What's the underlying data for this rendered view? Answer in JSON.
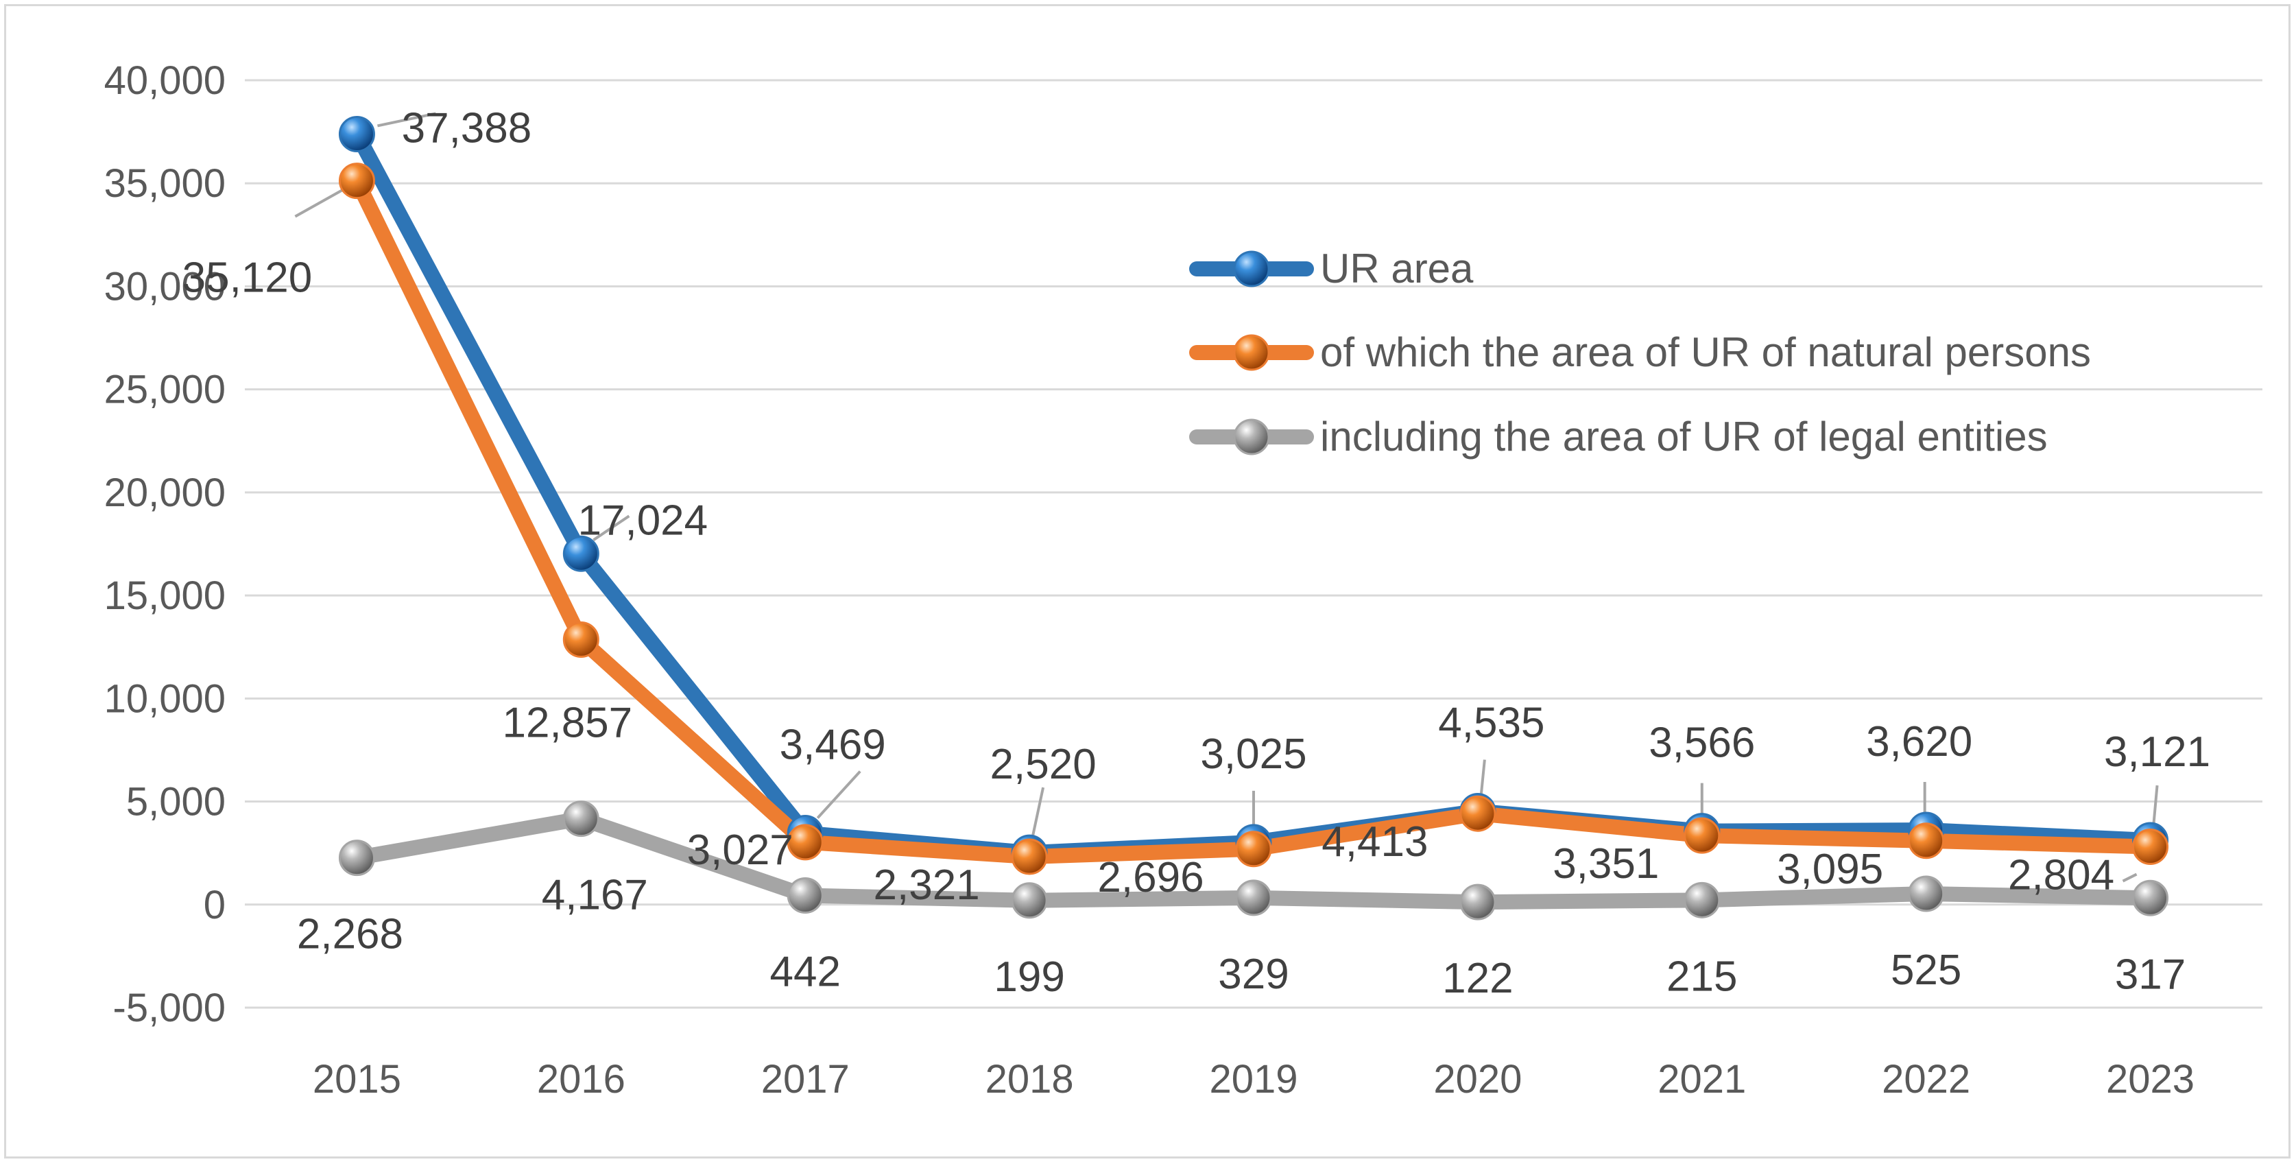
{
  "chart_data": {
    "type": "line",
    "title": "",
    "xlabel": "",
    "ylabel": "",
    "categories": [
      "2015",
      "2016",
      "2017",
      "2018",
      "2019",
      "2020",
      "2021",
      "2022",
      "2023"
    ],
    "ylim": [
      -5000,
      40000
    ],
    "yticks": [
      -5000,
      0,
      5000,
      10000,
      15000,
      20000,
      25000,
      30000,
      35000,
      40000
    ],
    "ytick_labels": [
      "-5,000",
      "0",
      "5,000",
      "10,000",
      "15,000",
      "20,000",
      "25,000",
      "30,000",
      "35,000",
      "40,000"
    ],
    "grid": true,
    "legend_position": "right",
    "series": [
      {
        "name": "UR area",
        "color": "#2e75b6",
        "values": [
          37388,
          17024,
          3469,
          2520,
          3025,
          4535,
          3566,
          3620,
          3121
        ],
        "labels": [
          "37,388",
          "17,024",
          "3,469",
          "2,520",
          "3,025",
          "4,535",
          "3,566",
          "3,620",
          "3,121"
        ]
      },
      {
        "name": "of which the area of UR of natural persons",
        "color": "#ed7d31",
        "values": [
          35120,
          12857,
          3027,
          2321,
          2696,
          4413,
          3351,
          3095,
          2804
        ],
        "labels": [
          "35,120",
          "12,857",
          "3,027",
          "2,321",
          "2,696",
          "4,413",
          "3,351",
          "3,095",
          "2,804"
        ]
      },
      {
        "name": "including the area of UR of legal entities",
        "color": "#a5a5a5",
        "values": [
          2268,
          4167,
          442,
          199,
          329,
          122,
          215,
          525,
          317
        ],
        "labels": [
          "2,268",
          "4,167",
          "442",
          "199",
          "329",
          "122",
          "215",
          "525",
          "317"
        ]
      }
    ]
  }
}
